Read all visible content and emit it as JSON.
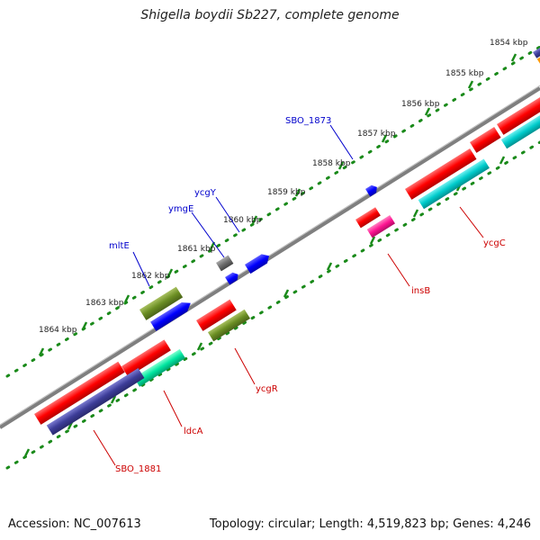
{
  "map": {
    "title": "Shigella boydii Sb227, complete genome",
    "footer": {
      "accession": "Accession: NC_007613",
      "summary": "Topology: circular; Length: 4,519,823 bp; Genes: 4,246"
    },
    "ticks": [
      {
        "label": "1854 kbp"
      },
      {
        "label": "1855 kbp"
      },
      {
        "label": "1856 kbp"
      },
      {
        "label": "1857 kbp"
      },
      {
        "label": "1858 kbp"
      },
      {
        "label": "1859 kbp"
      },
      {
        "label": "1860 kbp"
      },
      {
        "label": "1861 kbp"
      },
      {
        "label": "1862 kbp"
      },
      {
        "label": "1863 kbp"
      },
      {
        "label": "1864 kbp"
      }
    ],
    "gene_labels": [
      {
        "name": "SBO_1873",
        "strand": "forward",
        "color": "#0000cc"
      },
      {
        "name": "ycgY",
        "strand": "forward",
        "color": "#0000cc"
      },
      {
        "name": "ymgE",
        "strand": "forward",
        "color": "#0000cc"
      },
      {
        "name": "mltE",
        "strand": "forward",
        "color": "#0000cc"
      },
      {
        "name": "ycgC",
        "strand": "reverse",
        "color": "#cc0000"
      },
      {
        "name": "insB",
        "strand": "reverse",
        "color": "#cc0000"
      },
      {
        "name": "ycgR",
        "strand": "reverse",
        "color": "#cc0000"
      },
      {
        "name": "ldcA",
        "strand": "reverse",
        "color": "#cc0000"
      },
      {
        "name": "SBO_1881",
        "strand": "reverse",
        "color": "#cc0000"
      }
    ],
    "colors": {
      "backbone": "#7f7f7f",
      "tick_dots": "#1a8a1a",
      "forward_label": "#0000cc",
      "reverse_label": "#cc0000",
      "feature_red": "#ff0000",
      "feature_cyan": "#00cccc",
      "feature_olive": "#6b8e23",
      "feature_blue": "#0000ff",
      "feature_navy": "#3d3d99",
      "feature_pink": "#ff1493",
      "feature_mint": "#00e6a0",
      "feature_gray": "#6f6f6f",
      "feature_orange": "#ff9900"
    }
  }
}
